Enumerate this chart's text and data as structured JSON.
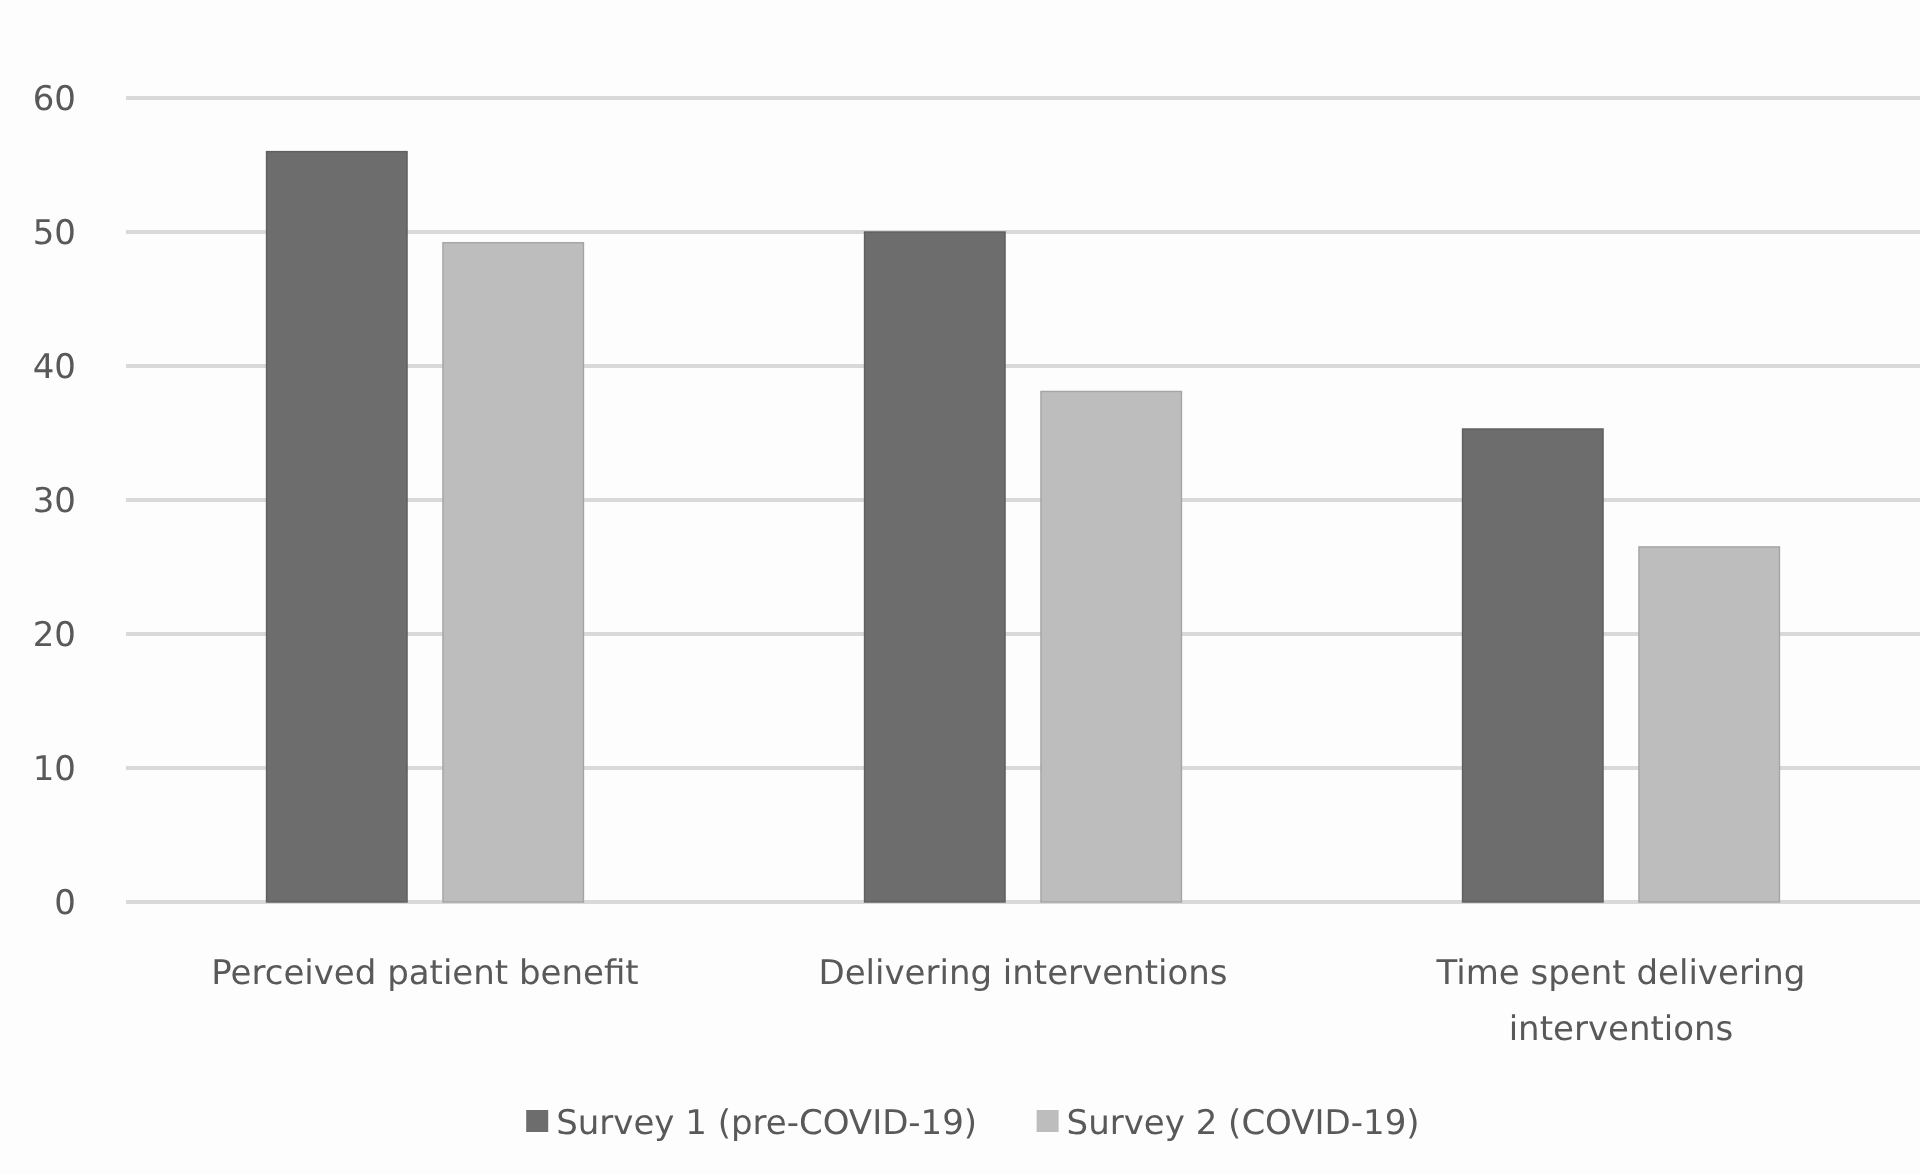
{
  "chart_data": {
    "type": "bar",
    "categories": [
      "Perceived patient benefit",
      "Delivering interventions",
      "Time spent delivering interventions"
    ],
    "series": [
      {
        "name": "Survey 1 (pre-COVID-19)",
        "color": "#6d6d6d",
        "values": [
          56,
          50,
          35.3
        ]
      },
      {
        "name": "Survey 2 (COVID-19)",
        "color": "#bdbdbd",
        "values": [
          49.2,
          38.1,
          26.5
        ]
      }
    ],
    "ylim": [
      0,
      60
    ],
    "yticks": [
      0,
      10,
      20,
      30,
      40,
      50,
      60
    ],
    "grid": "y",
    "legend": "bottom"
  }
}
